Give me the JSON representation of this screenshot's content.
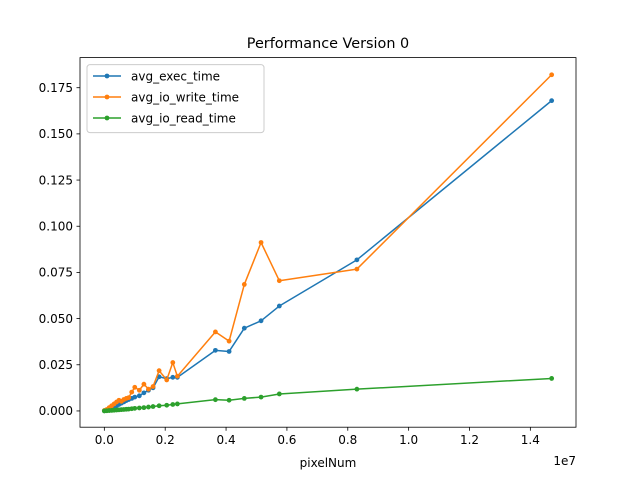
{
  "chart_data": {
    "type": "line",
    "title": "Performance Version 0",
    "xlabel": "pixelNum",
    "ylabel": "",
    "x_offset_label": "1e7",
    "xlim": [
      -8000000,
      155000000
    ],
    "ylim": [
      -0.0088,
      0.1913
    ],
    "x_ticks": [
      0,
      20000000,
      40000000,
      60000000,
      80000000,
      100000000,
      120000000,
      140000000
    ],
    "x_tick_labels": [
      "0.0",
      "0.2",
      "0.4",
      "0.6",
      "0.8",
      "1.0",
      "1.2",
      "1.4"
    ],
    "y_ticks": [
      0.0,
      0.025,
      0.05,
      0.075,
      0.1,
      0.125,
      0.15,
      0.175
    ],
    "y_tick_labels": [
      "0.000",
      "0.025",
      "0.050",
      "0.075",
      "0.100",
      "0.125",
      "0.150",
      "0.175"
    ],
    "grid": false,
    "legend_position": "upper-left",
    "x": [
      0,
      800000,
      1600000,
      2400000,
      3200000,
      4000000,
      4800000,
      5600000,
      6400000,
      7200000,
      8000000,
      9000000,
      10000000,
      11500000,
      13000000,
      14500000,
      16000000,
      18000000,
      20500000,
      22500000,
      24000000,
      36500000,
      41000000,
      46000000,
      51500000,
      57500000,
      83000000,
      147000000
    ],
    "series": [
      {
        "name": "avg_exec_time",
        "color": "#1f77b4",
        "values": [
          0.0001,
          0.0004,
          0.0009,
          0.0015,
          0.0022,
          0.0028,
          0.0035,
          0.0042,
          0.0049,
          0.0056,
          0.0062,
          0.0068,
          0.0075,
          0.0082,
          0.0098,
          0.0112,
          0.0125,
          0.0185,
          0.0175,
          0.0182,
          0.0182,
          0.0328,
          0.0322,
          0.0448,
          0.0488,
          0.0568,
          0.0818,
          0.168
        ]
      },
      {
        "name": "avg_io_write_time",
        "color": "#ff7f0e",
        "values": [
          0.0002,
          0.0008,
          0.0018,
          0.0028,
          0.0038,
          0.0048,
          0.0058,
          0.0052,
          0.0062,
          0.0068,
          0.0072,
          0.0102,
          0.0128,
          0.0112,
          0.0145,
          0.0118,
          0.0132,
          0.0218,
          0.0168,
          0.0262,
          0.0188,
          0.0428,
          0.0378,
          0.0685,
          0.0912,
          0.0705,
          0.0768,
          0.182
        ]
      },
      {
        "name": "avg_io_read_time",
        "color": "#2ca02c",
        "values": [
          0.0,
          0.0001,
          0.0002,
          0.0003,
          0.0004,
          0.0005,
          0.0006,
          0.0007,
          0.0008,
          0.0009,
          0.001,
          0.0012,
          0.0014,
          0.0016,
          0.0018,
          0.0021,
          0.0024,
          0.0028,
          0.0031,
          0.0035,
          0.0038,
          0.0061,
          0.0058,
          0.0068,
          0.0075,
          0.0092,
          0.0118,
          0.0176
        ]
      }
    ]
  }
}
